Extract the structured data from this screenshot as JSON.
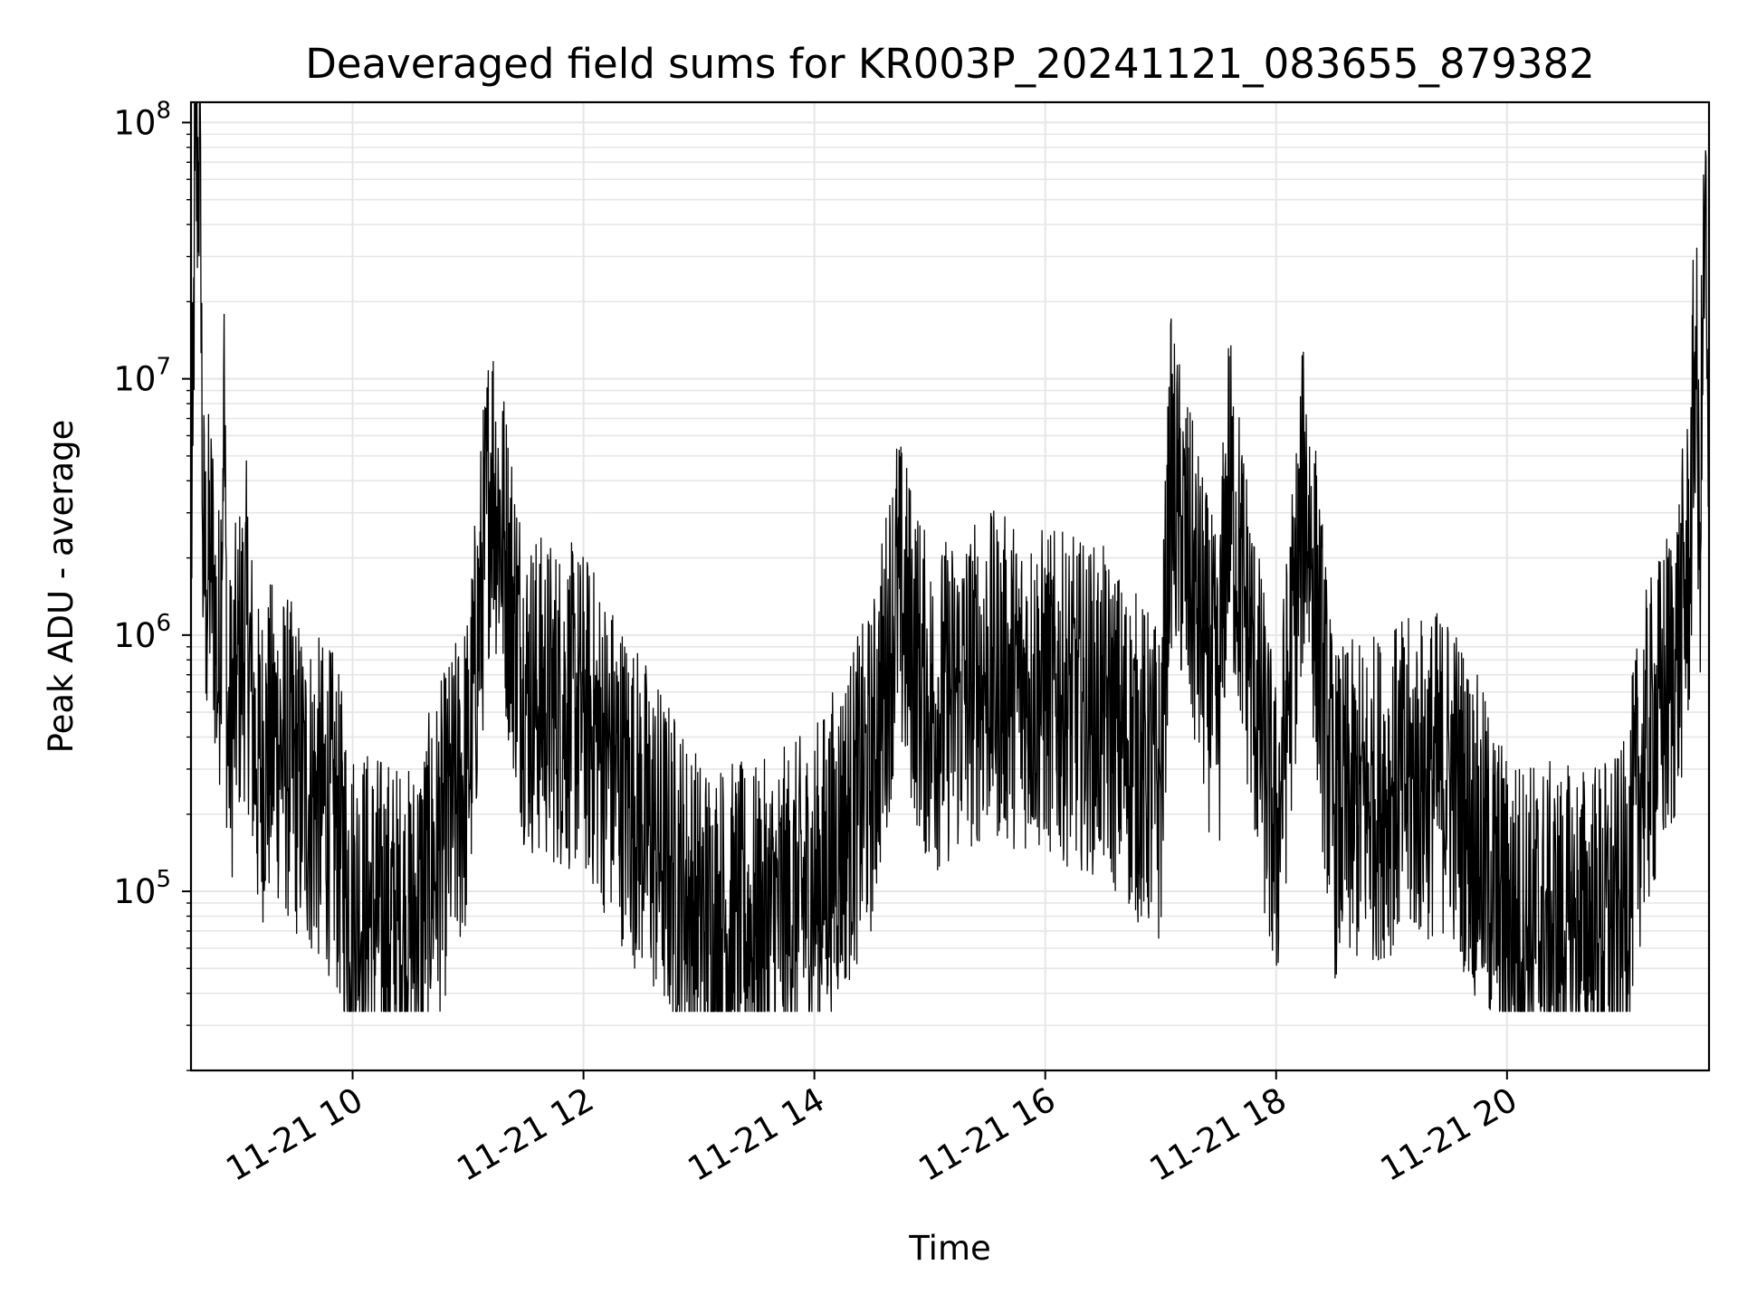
{
  "chart_data": {
    "type": "line",
    "title": "Deaveraged field sums for KR003P_20241121_083655_879382",
    "xlabel": "Time",
    "ylabel": "Peak ADU - average",
    "yscale": "log",
    "ylim": [
      20000,
      120000000
    ],
    "xlim": [
      "2024-11-21 08:36",
      "2024-11-21 21:45"
    ],
    "x_tick_labels": [
      "11-21 10",
      "11-21 12",
      "11-21 14",
      "11-21 16",
      "11-21 18",
      "11-21 20"
    ],
    "y_tick_labels": [
      {
        "base": "10",
        "exp": "5"
      },
      {
        "base": "10",
        "exp": "6"
      },
      {
        "base": "10",
        "exp": "7"
      },
      {
        "base": "10",
        "exp": "8"
      }
    ],
    "grid": true,
    "line_color": "#000000",
    "series": [
      {
        "x": [
          "2024-11-21 08:36",
          "2024-11-21 08:37",
          "2024-11-21 08:38",
          "2024-11-21 08:40",
          "2024-11-21 08:41",
          "2024-11-21 08:42",
          "2024-11-21 08:44",
          "2024-11-21 08:46",
          "2024-11-21 08:48",
          "2024-11-21 08:50",
          "2024-11-21 08:52",
          "2024-11-21 08:53",
          "2024-11-21 08:55",
          "2024-11-21 09:00",
          "2024-11-21 09:05",
          "2024-11-21 09:10",
          "2024-11-21 09:20",
          "2024-11-21 09:35",
          "2024-11-21 09:50",
          "2024-11-21 10:00",
          "2024-11-21 10:30",
          "2024-11-21 11:00",
          "2024-11-21 11:12",
          "2024-11-21 11:30",
          "2024-11-21 12:00",
          "2024-11-21 12:30",
          "2024-11-21 13:00",
          "2024-11-21 13:30",
          "2024-11-21 14:00",
          "2024-11-21 14:30",
          "2024-11-21 14:43",
          "2024-11-21 15:00",
          "2024-11-21 15:30",
          "2024-11-21 16:00",
          "2024-11-21 16:30",
          "2024-11-21 17:00",
          "2024-11-21 17:05",
          "2024-11-21 17:30",
          "2024-11-21 17:35",
          "2024-11-21 18:00",
          "2024-11-21 18:15",
          "2024-11-21 18:30",
          "2024-11-21 19:00",
          "2024-11-21 19:30",
          "2024-11-21 20:00",
          "2024-11-21 20:30",
          "2024-11-21 21:00",
          "2024-11-21 21:10",
          "2024-11-21 21:20",
          "2024-11-21 21:28",
          "2024-11-21 21:35",
          "2024-11-21 21:38",
          "2024-11-21 21:40",
          "2024-11-21 21:43",
          "2024-11-21 21:45"
        ],
        "y": [
          2000000,
          5500000,
          65000000,
          70000000,
          82000000,
          2400000,
          1500000,
          2000000,
          1600000,
          600000,
          2300000,
          10500000,
          350000,
          700000,
          1100000,
          300000,
          400000,
          250000,
          200000,
          90000,
          70000,
          300000,
          4700000,
          600000,
          500000,
          200000,
          80000,
          70000,
          100000,
          300000,
          1500000,
          500000,
          700000,
          600000,
          500000,
          250000,
          4100000,
          500000,
          4000000,
          150000,
          3900000,
          200000,
          250000,
          300000,
          80000,
          70000,
          80000,
          300000,
          500000,
          800000,
          2000000,
          16000000,
          1800000,
          55000000,
          1200000
        ]
      }
    ]
  }
}
